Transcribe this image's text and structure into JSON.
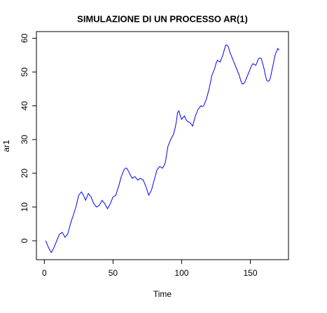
{
  "chart_data": {
    "type": "line",
    "title": "SIMULAZIONE DI UN PROCESSO AR(1)",
    "x_label": "Time",
    "y_label": "ar1",
    "color": "#0000ff",
    "x": [
      1,
      2,
      3,
      4,
      5,
      6,
      7,
      8,
      9,
      10,
      11,
      12,
      13,
      14,
      15,
      16,
      17,
      18,
      19,
      20,
      21,
      22,
      23,
      24,
      25,
      26,
      27,
      28,
      29,
      30,
      31,
      32,
      33,
      34,
      35,
      36,
      37,
      38,
      39,
      40,
      41,
      42,
      43,
      44,
      45,
      46,
      47,
      48,
      49,
      50,
      51,
      52,
      53,
      54,
      55,
      56,
      57,
      58,
      59,
      60,
      61,
      62,
      63,
      64,
      65,
      66,
      67,
      68,
      69,
      70,
      71,
      72,
      73,
      74,
      75,
      76,
      77,
      78,
      79,
      80,
      81,
      82,
      83,
      84,
      85,
      86,
      87,
      88,
      89,
      90,
      91,
      92,
      93,
      94,
      95,
      96,
      97,
      98,
      99,
      100,
      101,
      102,
      103,
      104,
      105,
      106,
      107,
      108,
      109,
      110,
      111,
      112,
      113,
      114,
      115,
      116,
      117,
      118,
      119,
      120,
      121,
      122,
      123,
      124,
      125,
      126,
      127,
      128,
      129,
      130,
      131,
      132,
      133,
      134,
      135,
      136,
      137,
      138,
      139,
      140,
      141,
      142,
      143,
      144,
      145,
      146,
      147,
      148,
      149,
      150,
      151,
      152,
      153,
      154,
      155,
      156,
      157,
      158,
      159,
      160,
      161,
      162,
      163,
      164,
      165,
      166,
      167,
      168,
      169,
      170,
      171
    ],
    "values": [
      0,
      -1,
      -2,
      -2.8,
      -3.5,
      -2.8,
      -2,
      -1,
      0,
      1,
      2,
      2.2,
      2.5,
      1.8,
      1,
      1.5,
      2,
      3.5,
      5,
      6.3,
      7.5,
      8.8,
      10,
      11.8,
      13.5,
      14,
      14.5,
      13.8,
      13,
      12,
      13,
      14,
      13.5,
      13,
      12,
      11,
      10.5,
      10,
      10.2,
      10.5,
      11.2,
      12,
      11.5,
      11,
      10.2,
      9.5,
      10.2,
      11,
      12,
      13,
      13.2,
      13.5,
      14.8,
      16,
      17.5,
      19,
      20,
      21,
      21.5,
      21.5,
      20.8,
      20,
      19.2,
      18.5,
      18.8,
      19,
      18.5,
      18,
      18.3,
      18.5,
      18.2,
      18,
      17,
      16,
      14.8,
      13.5,
      14.2,
      15,
      16.5,
      18,
      19.5,
      21,
      21.5,
      22,
      21.8,
      21.5,
      22.2,
      23,
      25.5,
      28,
      29,
      30,
      30.8,
      31.5,
      33,
      35,
      38,
      38.5,
      37,
      36,
      36.5,
      37,
      36,
      35.5,
      35.2,
      35,
      34.5,
      34,
      35.5,
      37,
      38,
      39,
      39.5,
      40,
      39.8,
      40,
      41,
      42,
      43.5,
      45,
      47,
      49,
      50,
      51,
      52.5,
      53.5,
      53.2,
      53,
      54,
      55,
      56.5,
      58,
      58,
      57.5,
      56,
      55,
      54,
      53,
      52,
      51,
      50,
      49,
      47.5,
      46.5,
      46.5,
      47,
      48,
      49,
      50,
      51,
      52,
      52.5,
      52.2,
      52,
      53,
      54,
      54.2,
      54,
      52.5,
      51,
      49,
      47.5,
      47.3,
      47.5,
      49,
      51,
      53,
      55,
      56,
      57,
      56.5
    ],
    "xlim": [
      -5.8,
      177.8
    ],
    "xticks": [
      0,
      50,
      100,
      150
    ],
    "ylim": [
      -5.6,
      62
    ],
    "yticks": [
      0,
      10,
      20,
      30,
      40,
      50,
      60
    ]
  }
}
